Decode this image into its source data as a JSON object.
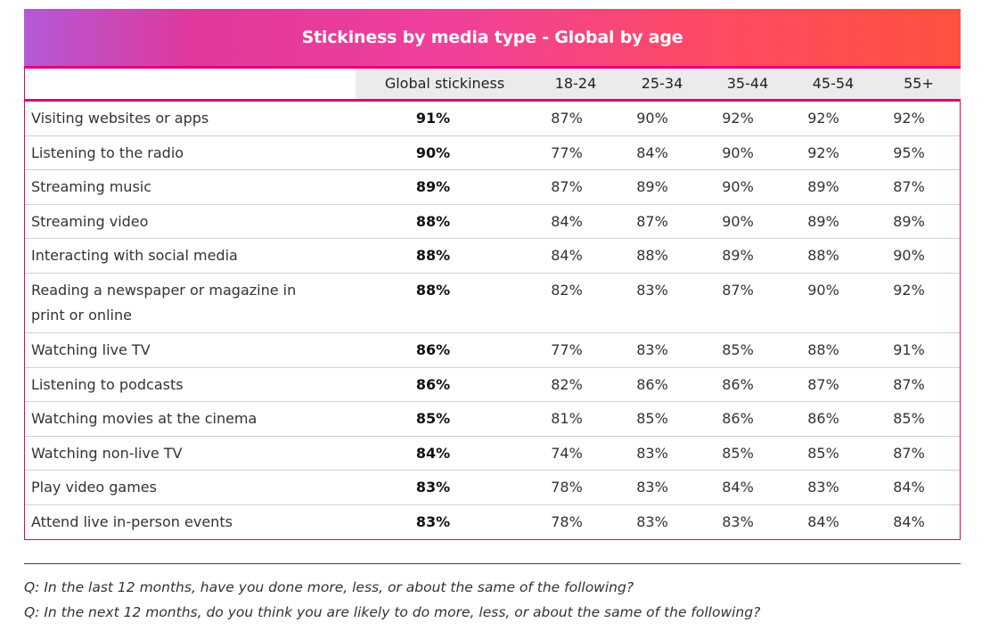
{
  "chart_data": {
    "type": "table",
    "title": "Stickiness by media type - Global by age",
    "columns": [
      "",
      "Global stickiness",
      "18-24",
      "25-34",
      "35-44",
      "45-54",
      "55+"
    ],
    "rows": [
      {
        "label": "Visiting websites or apps",
        "global": "91%",
        "ages": [
          "87%",
          "90%",
          "92%",
          "92%",
          "92%"
        ]
      },
      {
        "label": "Listening to the radio",
        "global": "90%",
        "ages": [
          "77%",
          "84%",
          "90%",
          "92%",
          "95%"
        ]
      },
      {
        "label": "Streaming music",
        "global": "89%",
        "ages": [
          "87%",
          "89%",
          "90%",
          "89%",
          "87%"
        ]
      },
      {
        "label": "Streaming video",
        "global": "88%",
        "ages": [
          "84%",
          "87%",
          "90%",
          "89%",
          "89%"
        ]
      },
      {
        "label": "Interacting with social media",
        "global": "88%",
        "ages": [
          "84%",
          "88%",
          "89%",
          "88%",
          "90%"
        ]
      },
      {
        "label": "Reading a newspaper or magazine in print or online",
        "global": "88%",
        "ages": [
          "82%",
          "83%",
          "87%",
          "90%",
          "92%"
        ]
      },
      {
        "label": "Watching live TV",
        "global": "86%",
        "ages": [
          "77%",
          "83%",
          "85%",
          "88%",
          "91%"
        ]
      },
      {
        "label": "Listening to podcasts",
        "global": "86%",
        "ages": [
          "82%",
          "86%",
          "86%",
          "87%",
          "87%"
        ]
      },
      {
        "label": "Watching movies at the cinema",
        "global": "85%",
        "ages": [
          "81%",
          "85%",
          "86%",
          "86%",
          "85%"
        ]
      },
      {
        "label": "Watching non-live TV",
        "global": "84%",
        "ages": [
          "74%",
          "83%",
          "85%",
          "85%",
          "87%"
        ]
      },
      {
        "label": "Play video games",
        "global": "83%",
        "ages": [
          "78%",
          "83%",
          "84%",
          "83%",
          "84%"
        ]
      },
      {
        "label": "Attend live in-person events",
        "global": "83%",
        "ages": [
          "78%",
          "83%",
          "83%",
          "84%",
          "84%"
        ]
      }
    ]
  },
  "notes": [
    "Q: In the last 12 months, have you done more, less, or about the same of the following?",
    "Q: In the next 12 months, do you think you are likely to do more, less, or about the same of the following?"
  ],
  "colors": {
    "accent": "#e0007a",
    "banner_gradient": [
      "#b25ad6",
      "#e0389c",
      "#ff4a60",
      "#ff5040"
    ],
    "header_bg": "#ebebed"
  }
}
